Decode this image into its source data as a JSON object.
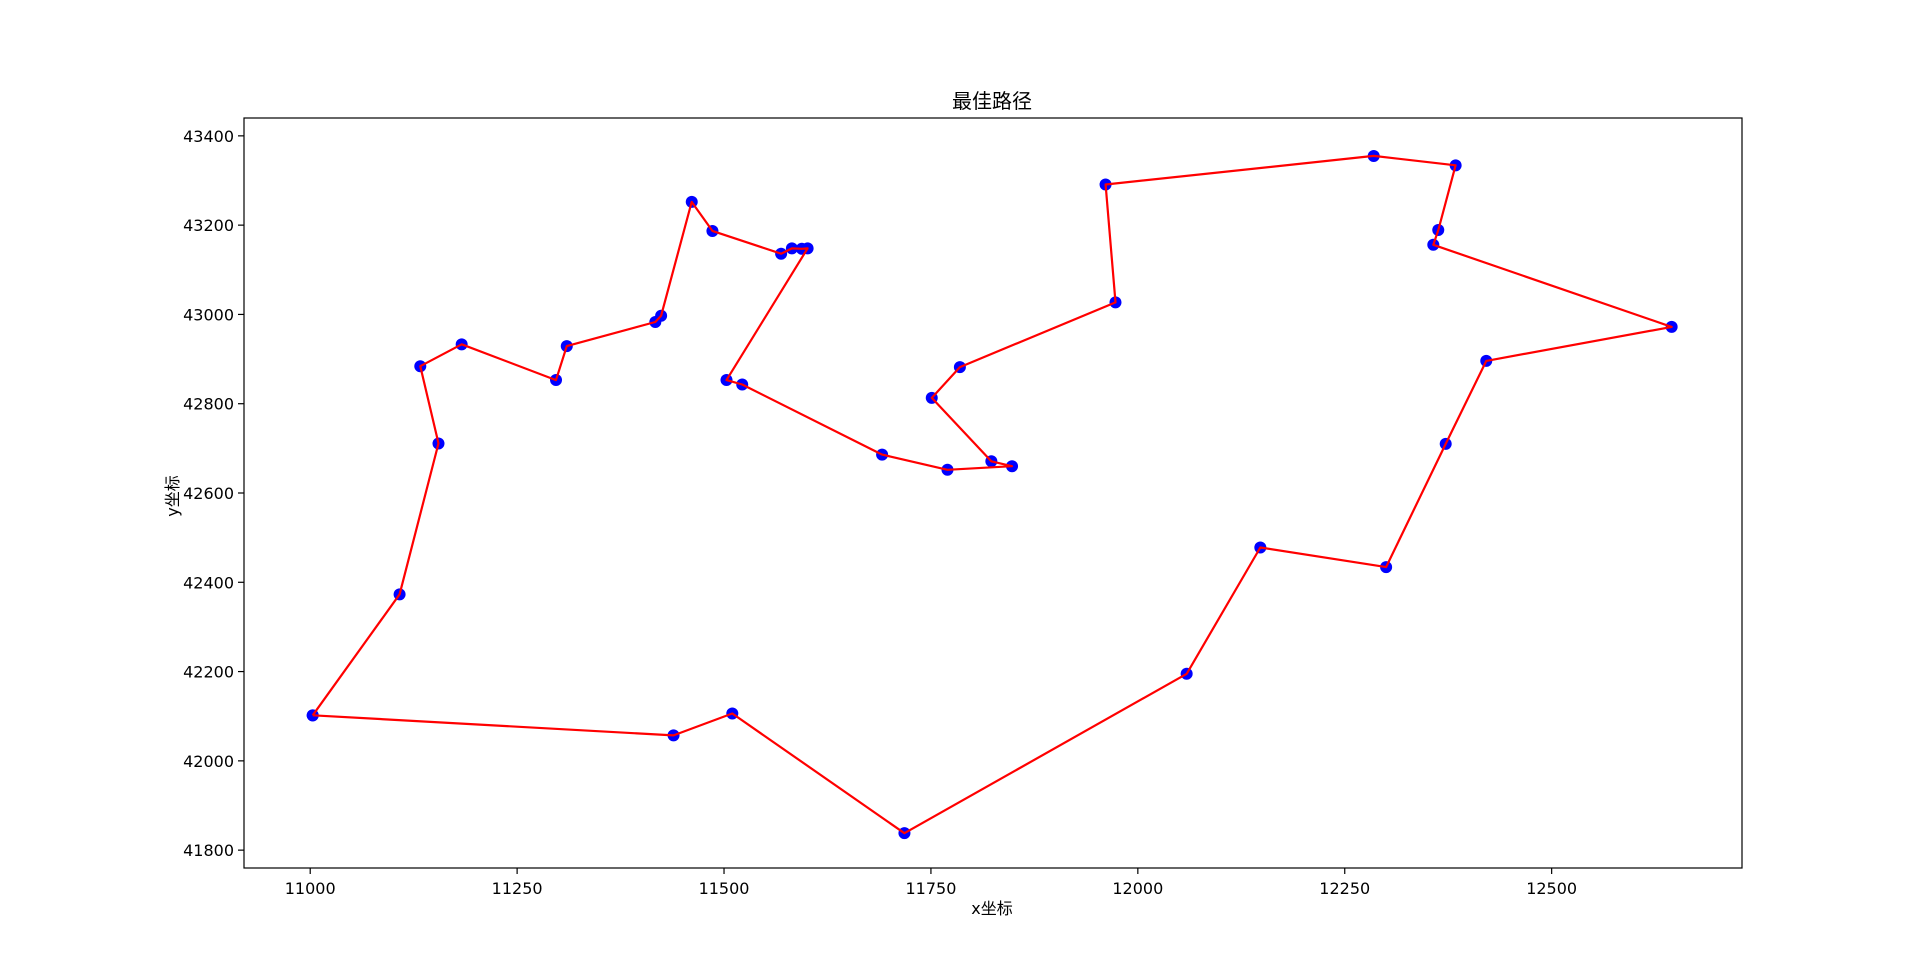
{
  "chart_data": {
    "type": "line",
    "title": "最佳路径",
    "xlabel": "x坐标",
    "ylabel": "y坐标",
    "xlim": [
      10920,
      12730
    ],
    "ylim": [
      41760,
      43440
    ],
    "xticks": [
      11000,
      11250,
      11500,
      11750,
      12000,
      12250,
      12500
    ],
    "yticks": [
      41800,
      42000,
      42200,
      42400,
      42600,
      42800,
      43000,
      43200,
      43400
    ],
    "grid": false,
    "line_color": "#ff0000",
    "marker_color": "#0000ff",
    "series": [
      {
        "x": [
          11003,
          11108,
          11155,
          11133,
          11183,
          11297,
          11310,
          11417,
          11424,
          11461,
          11486,
          11569,
          11582,
          11594,
          11601,
          11503,
          11522,
          11691,
          11770,
          11848,
          11823,
          11751,
          11785,
          11973,
          11961,
          12285,
          12384,
          12363,
          12357,
          12645,
          12421,
          12372,
          12300,
          12148,
          12059,
          11718,
          11510,
          11439,
          11003
        ],
        "y": [
          42102,
          42373,
          42711,
          42884,
          42933,
          42853,
          42929,
          42983,
          42997,
          43252,
          43187,
          43136,
          43148,
          43147,
          43148,
          42853,
          42843,
          42686,
          42652,
          42660,
          42671,
          42813,
          42882,
          43027,
          43291,
          43355,
          43334,
          43189,
          43156,
          42972,
          42896,
          42710,
          42434,
          42478,
          42195,
          41838,
          42106,
          42057,
          42102
        ]
      }
    ]
  }
}
